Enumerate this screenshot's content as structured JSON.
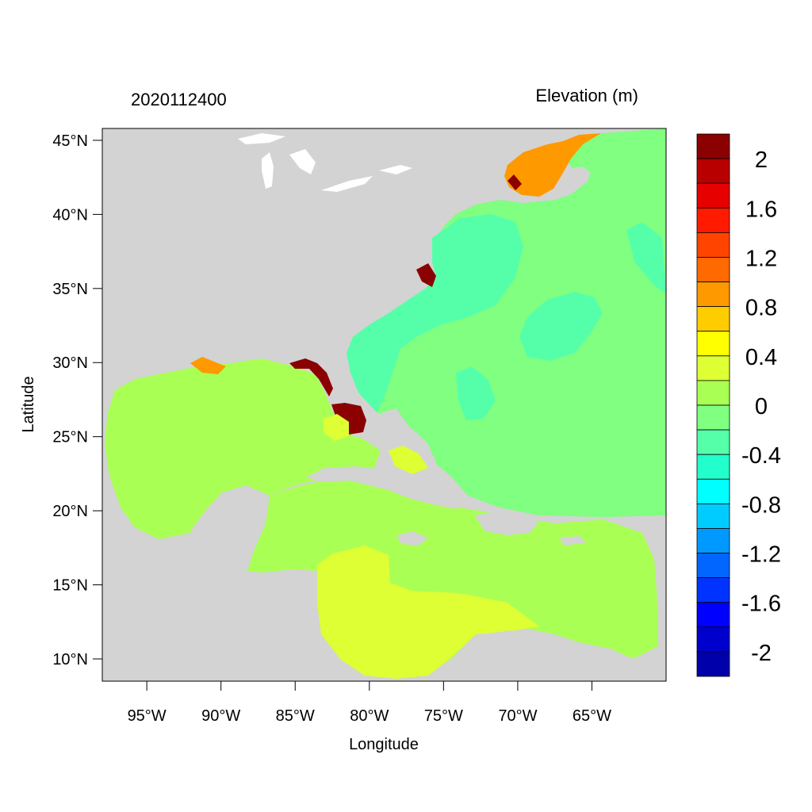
{
  "header": {
    "date_label": "2020112400",
    "variable_label": "Elevation (m)"
  },
  "axes": {
    "xlabel": "Longitude",
    "ylabel": "Latitude",
    "x_ticks": [
      "95°W",
      "90°W",
      "85°W",
      "80°W",
      "75°W",
      "70°W",
      "65°W"
    ],
    "y_ticks": [
      "45°N",
      "40°N",
      "35°N",
      "30°N",
      "25°N",
      "20°N",
      "15°N",
      "10°N"
    ],
    "lon_range": [
      -98,
      -60
    ],
    "lat_range": [
      8.5,
      45.8
    ]
  },
  "colorbar": {
    "labels": [
      "2",
      "1.6",
      "1.2",
      "0.8",
      "0.4",
      "0",
      "-0.4",
      "-0.8",
      "-1.2",
      "-1.6",
      "-2"
    ],
    "colors": [
      "#8b0000",
      "#b80000",
      "#e60000",
      "#ff1a00",
      "#ff4400",
      "#ff6a00",
      "#ff9900",
      "#ffcc00",
      "#ffff00",
      "#ddff33",
      "#aaff55",
      "#80ff80",
      "#55ffaa",
      "#22ffcc",
      "#00ffff",
      "#00ccff",
      "#0099ff",
      "#0066ff",
      "#0033ff",
      "#0000ff",
      "#0000cc",
      "#0000aa"
    ]
  },
  "map_colors": {
    "land": "#d3d3d3",
    "lakes": "#ffffff",
    "gulf": "#aaff55",
    "atlantic": "#80ff80",
    "shelf": "#55ffaa",
    "caribbean_south": "#ddff33",
    "surge_high": "#8b0000",
    "surge_mid": "#ff9900"
  }
}
